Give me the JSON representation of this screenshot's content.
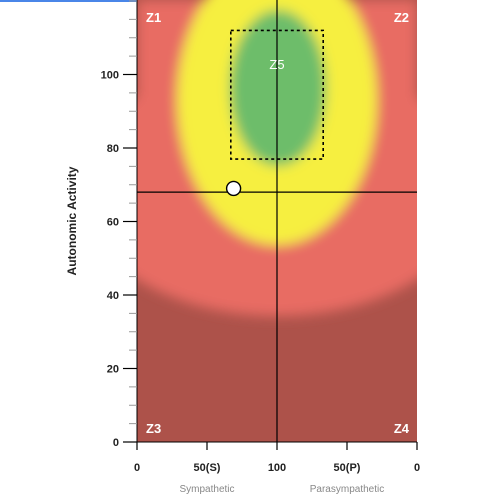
{
  "chart_data": {
    "type": "heatmap",
    "ylabel": "Autonomic Activity",
    "ylim": [
      0,
      120
    ],
    "y_ticks": [
      "0",
      "20",
      "40",
      "60",
      "80",
      "100"
    ],
    "x_ticks": [
      "0",
      "50(S)",
      "100",
      "50(P)",
      "0"
    ],
    "x_groups": [
      "Sympathetic",
      "Parasympathetic"
    ],
    "grid": false,
    "zones": [
      "Z1",
      "Z2",
      "Z3",
      "Z4",
      "Z5"
    ],
    "crosshair": {
      "x": 100,
      "y": 68
    },
    "point": {
      "x": 69,
      "y": 69
    },
    "target_box": {
      "x": [
        67,
        133
      ],
      "y": [
        77,
        112
      ]
    },
    "colors": {
      "dark_red": "#ad524a",
      "red": "#e86c63",
      "yellow": "#f6ef3f",
      "green": "#6dbd6a",
      "top_bar": "#4a86e8"
    }
  }
}
